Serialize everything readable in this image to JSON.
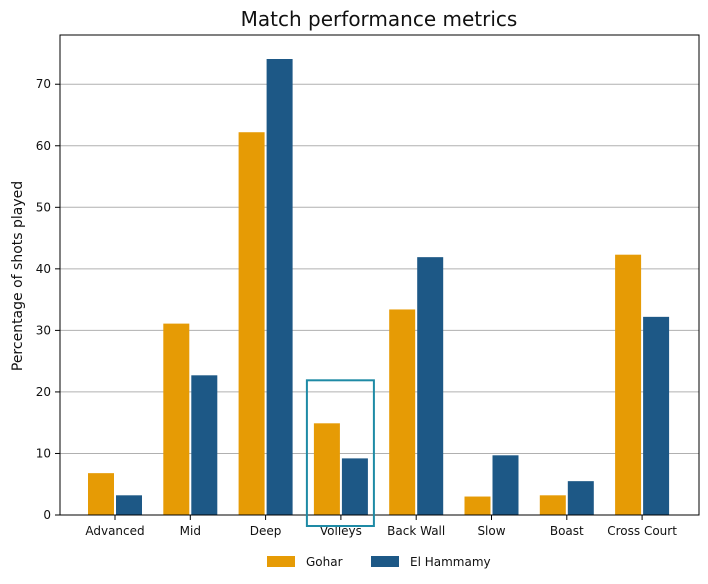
{
  "chart_data": {
    "type": "bar",
    "title": "Match performance metrics",
    "xlabel": "",
    "ylabel": "Percentage of shots played",
    "categories": [
      "Advanced",
      "Mid",
      "Deep",
      "Volleys",
      "Back Wall",
      "Slow",
      "Boast",
      "Cross Court"
    ],
    "series": [
      {
        "name": "Gohar",
        "color": "#E69B05",
        "values": [
          6.8,
          31.1,
          62.2,
          14.9,
          33.4,
          3.0,
          3.2,
          42.3
        ]
      },
      {
        "name": "El Hammamy",
        "color": "#1D5886",
        "values": [
          3.2,
          22.7,
          74.1,
          9.2,
          41.9,
          9.7,
          5.5,
          32.2
        ]
      }
    ],
    "ylim": [
      0,
      78
    ],
    "yticks": [
      0,
      10,
      20,
      30,
      40,
      50,
      60,
      70
    ],
    "grid": true,
    "legend_position": "bottom-center",
    "highlight": {
      "category": "Volleys",
      "color": "#1E8AA5"
    }
  }
}
